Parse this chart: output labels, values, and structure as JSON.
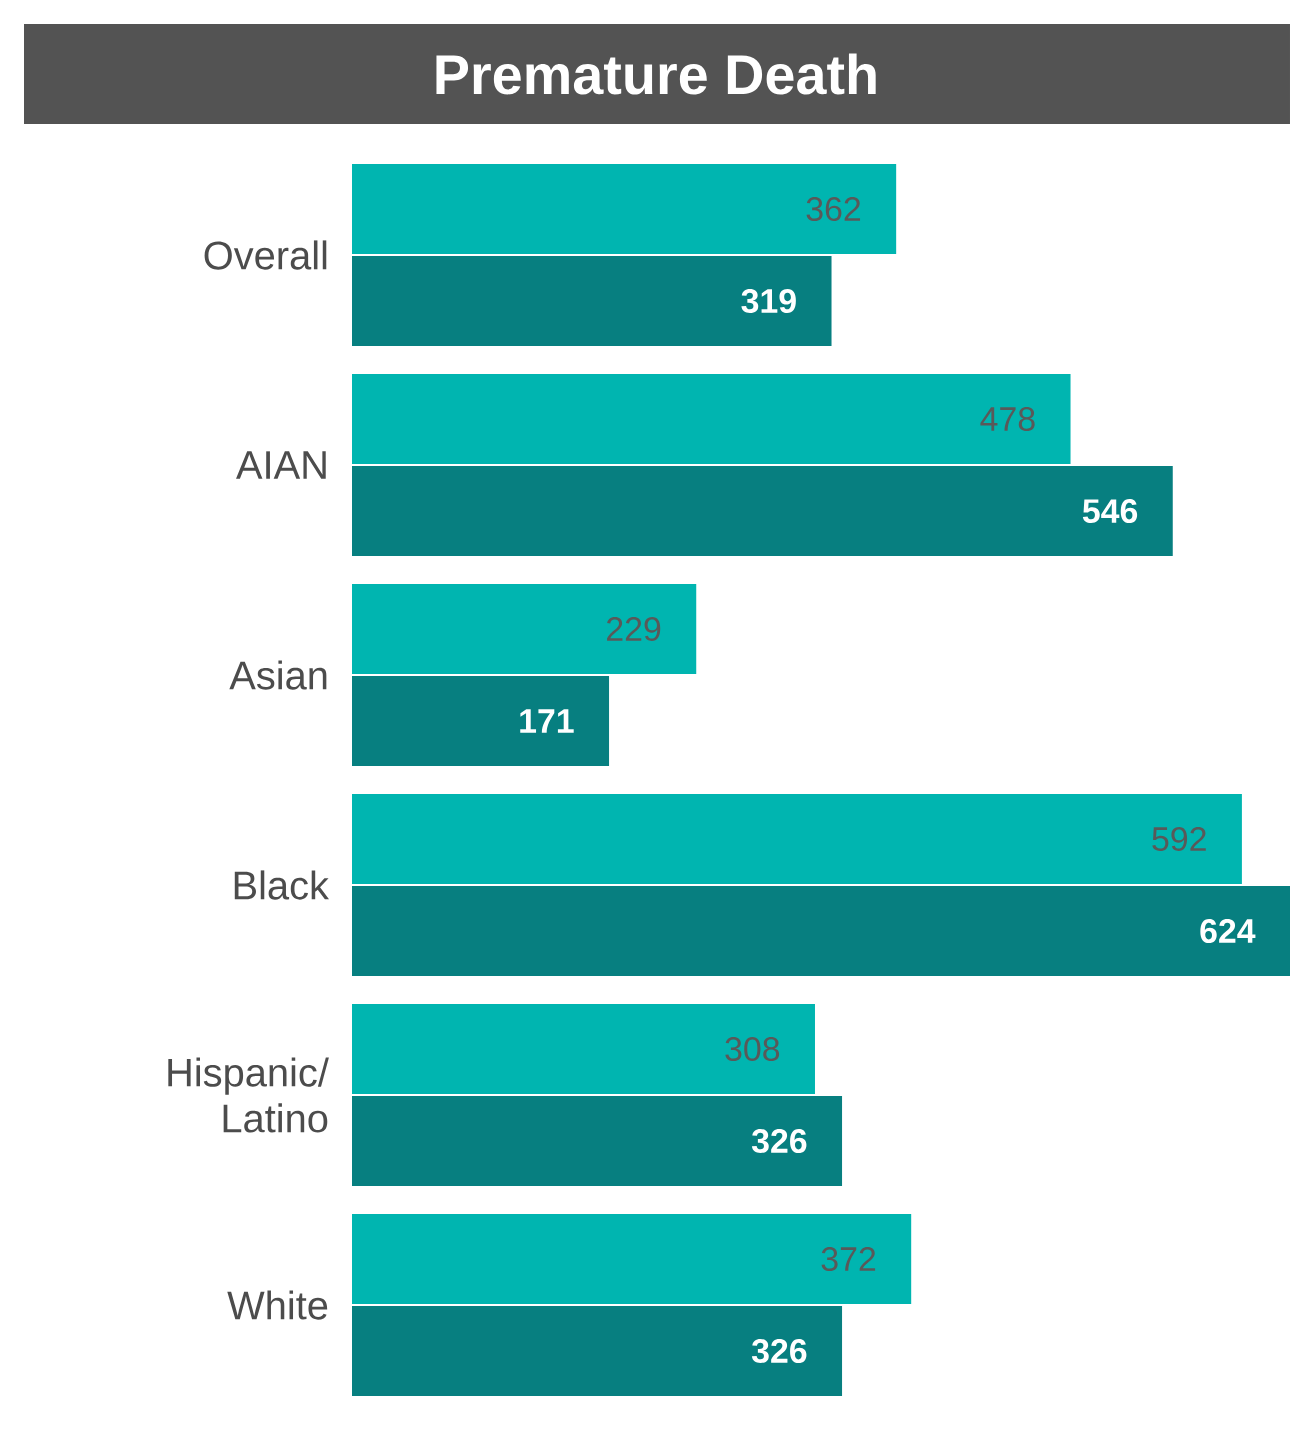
{
  "chart_data": {
    "type": "bar",
    "orientation": "horizontal",
    "title": "Premature Death",
    "data_labels": true,
    "categories": [
      "Overall",
      "AIAN",
      "Asian",
      "Black",
      "Hispanic/ Latino",
      "White"
    ],
    "series": [
      {
        "color": "#00b5b0",
        "values": [
          362,
          478,
          229,
          592,
          308,
          372
        ]
      },
      {
        "color": "#077f80",
        "values": [
          319,
          546,
          171,
          624,
          326,
          326
        ]
      }
    ]
  }
}
